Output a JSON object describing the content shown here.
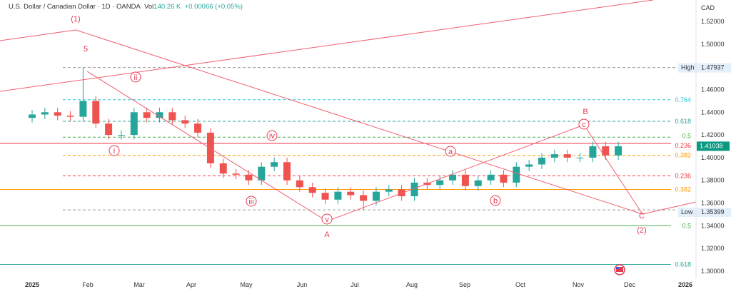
{
  "header": {
    "symbol": "U.S. Dollar / Canadian Dollar · 1D · OANDA",
    "vol_label": "Vol",
    "vol_value": "140.26 K",
    "change": "+0.00066 (+0.05%)"
  },
  "colors": {
    "up": "#26a69a",
    "down": "#ef5350",
    "wave": "#e53950"
  },
  "chart_data": {
    "type": "candlestick",
    "title": "U.S. Dollar / Canadian Dollar · 1D · OANDA",
    "currency": "CAD",
    "ylim": [
      1.29,
      1.53
    ],
    "y_ticks": [
      "1.52000",
      "1.50000",
      "1.46000",
      "1.44000",
      "1.42000",
      "1.40000",
      "1.38000",
      "1.36000",
      "1.34000",
      "1.32000",
      "1.30000"
    ],
    "x_ticks": [
      "2025",
      "Feb",
      "Mar",
      "Apr",
      "May",
      "Jun",
      "Jul",
      "Aug",
      "Sep",
      "Oct",
      "Nov",
      "Dec",
      "2026"
    ],
    "last_price": "1.41038",
    "high": {
      "label": "High",
      "value": "1.47937"
    },
    "low": {
      "label": "Low",
      "value": "1.35399"
    },
    "weekly_closes": [
      [
        "2025-01-01",
        1.438
      ],
      [
        "2025-01-08",
        1.44
      ],
      [
        "2025-01-15",
        1.437
      ],
      [
        "2025-01-22",
        1.436
      ],
      [
        "2025-01-29",
        1.45
      ],
      [
        "2025-02-05",
        1.43
      ],
      [
        "2025-02-12",
        1.42
      ],
      [
        "2025-02-19",
        1.42
      ],
      [
        "2025-02-26",
        1.44
      ],
      [
        "2025-03-05",
        1.435
      ],
      [
        "2025-03-12",
        1.44
      ],
      [
        "2025-03-19",
        1.433
      ],
      [
        "2025-03-26",
        1.43
      ],
      [
        "2025-04-02",
        1.422
      ],
      [
        "2025-04-09",
        1.395
      ],
      [
        "2025-04-16",
        1.386
      ],
      [
        "2025-04-23",
        1.385
      ],
      [
        "2025-04-30",
        1.38
      ],
      [
        "2025-05-07",
        1.392
      ],
      [
        "2025-05-14",
        1.396
      ],
      [
        "2025-05-21",
        1.38
      ],
      [
        "2025-05-28",
        1.374
      ],
      [
        "2025-06-04",
        1.369
      ],
      [
        "2025-06-11",
        1.363
      ],
      [
        "2025-06-18",
        1.37
      ],
      [
        "2025-06-25",
        1.367
      ],
      [
        "2025-07-02",
        1.362
      ],
      [
        "2025-07-09",
        1.37
      ],
      [
        "2025-07-16",
        1.372
      ],
      [
        "2025-07-23",
        1.366
      ],
      [
        "2025-07-30",
        1.378
      ],
      [
        "2025-08-06",
        1.376
      ],
      [
        "2025-08-13",
        1.38
      ],
      [
        "2025-08-20",
        1.385
      ],
      [
        "2025-08-27",
        1.375
      ],
      [
        "2025-09-03",
        1.38
      ],
      [
        "2025-09-10",
        1.385
      ],
      [
        "2025-09-17",
        1.378
      ],
      [
        "2025-09-24",
        1.392
      ],
      [
        "2025-10-01",
        1.394
      ],
      [
        "2025-10-08",
        1.4
      ],
      [
        "2025-10-15",
        1.403
      ],
      [
        "2025-10-22",
        1.4
      ],
      [
        "2025-10-29",
        1.4
      ],
      [
        "2025-11-05",
        1.41
      ],
      [
        "2025-11-12",
        1.402
      ],
      [
        "2025-11-19",
        1.41
      ]
    ],
    "fib_levels": [
      {
        "label": "0.764",
        "price": 1.451,
        "color": "#26c6da",
        "style": "dashed"
      },
      {
        "label": "0.618",
        "price": 1.432,
        "color": "#26a69a",
        "style": "dashed"
      },
      {
        "label": "0.5",
        "price": 1.418,
        "color": "#4caf50",
        "style": "dashed"
      },
      {
        "label": "0.236",
        "price": 1.4125,
        "color": "#f23645",
        "style": "solid"
      },
      {
        "label": "0.382",
        "price": 1.402,
        "color": "#ff9800",
        "style": "dashed"
      },
      {
        "label": "0.236",
        "price": 1.384,
        "color": "#f23645",
        "style": "dashed"
      },
      {
        "label": "0.382",
        "price": 1.372,
        "color": "#ff9800",
        "style": "solid"
      },
      {
        "label": "0.5",
        "price": 1.34,
        "color": "#4caf50",
        "style": "solid"
      },
      {
        "label": "0.618",
        "price": 1.306,
        "color": "#26a69a",
        "style": "solid"
      }
    ],
    "wave_labels": [
      "(1)",
      "5",
      "ii",
      "i",
      "iv",
      "iii",
      "v",
      "A",
      "a",
      "b",
      "c",
      "B",
      "C",
      "(2)"
    ]
  }
}
